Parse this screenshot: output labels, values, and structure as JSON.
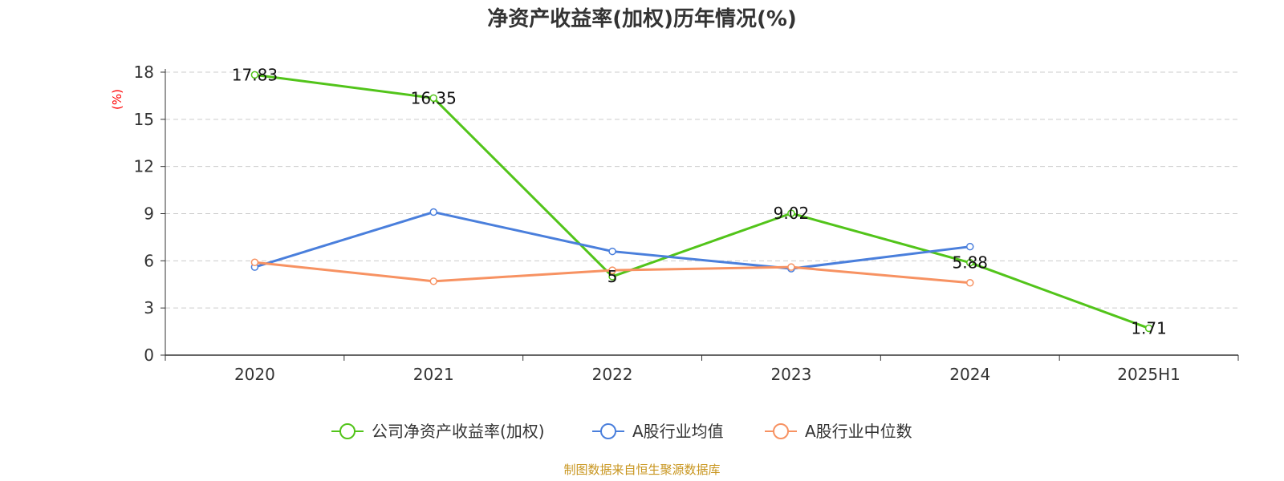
{
  "chart_data": {
    "type": "line",
    "title": "净资产收益率(加权)历年情况(%)",
    "ylabel": "(%)",
    "ylabel_color": "#ff0000",
    "categories": [
      "2020",
      "2021",
      "2022",
      "2023",
      "2024",
      "2025H1"
    ],
    "ylim": [
      0,
      18
    ],
    "yticks": [
      0,
      3,
      6,
      9,
      12,
      15,
      18
    ],
    "grid": true,
    "legend_position": "bottom",
    "series": [
      {
        "name": "公司净资产收益率(加权)",
        "color": "#52c41a",
        "values": [
          17.83,
          16.35,
          5,
          9.02,
          5.88,
          1.71
        ],
        "labels": [
          "17.83",
          "16.35",
          "5",
          "9.02",
          "5.88",
          "1.71"
        ]
      },
      {
        "name": "A股行业均值",
        "color": "#4a7fdc",
        "values": [
          5.6,
          9.1,
          6.6,
          5.5,
          6.9,
          null
        ]
      },
      {
        "name": "A股行业中位数",
        "color": "#f79262",
        "values": [
          5.9,
          4.7,
          5.4,
          5.6,
          4.6,
          null
        ]
      }
    ],
    "source": "制图数据来自恒生聚源数据库",
    "source_color": "#c8951e"
  }
}
